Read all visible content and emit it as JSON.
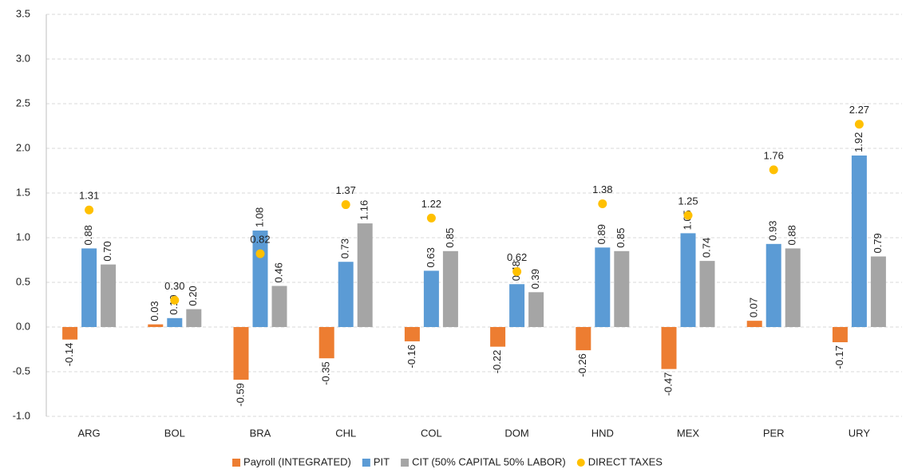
{
  "chart_data": {
    "type": "bar",
    "categories": [
      "ARG",
      "BOL",
      "BRA",
      "CHL",
      "COL",
      "DOM",
      "HND",
      "MEX",
      "PER",
      "URY"
    ],
    "series": [
      {
        "name": "Payroll (INTEGRATED)",
        "color": "#ed7d31",
        "kind": "bar",
        "values": [
          -0.14,
          0.03,
          -0.59,
          -0.35,
          -0.16,
          -0.22,
          -0.26,
          -0.47,
          0.07,
          -0.17
        ],
        "value_labels": [
          "-0.14",
          "0.03",
          "-0.59",
          "-0.35",
          "-0.16",
          "-0.22",
          "-0.26",
          "-0.47",
          "0.07",
          "-0.17"
        ]
      },
      {
        "name": "PIT",
        "color": "#5b9bd5",
        "kind": "bar",
        "values": [
          0.88,
          0.1,
          1.08,
          0.73,
          0.63,
          0.48,
          0.89,
          1.05,
          0.93,
          1.92
        ],
        "value_labels": [
          "0.88",
          "0.10",
          "1.08",
          "0.73",
          "0.63",
          "0.48",
          "0.89",
          "1.05",
          "0.93",
          "1.92"
        ]
      },
      {
        "name": "CIT (50% CAPITAL 50% LABOR)",
        "color": "#a5a5a5",
        "kind": "bar",
        "values": [
          0.7,
          0.2,
          0.46,
          1.16,
          0.85,
          0.39,
          0.85,
          0.74,
          0.88,
          0.79
        ],
        "value_labels": [
          "0.70",
          "0.20",
          "0.46",
          "1.16",
          "0.85",
          "0.39",
          "0.85",
          "0.74",
          "0.88",
          "0.79"
        ]
      },
      {
        "name": "DIRECT TAXES",
        "color": "#ffc000",
        "kind": "dot",
        "values": [
          1.31,
          0.3,
          0.82,
          1.37,
          1.22,
          0.62,
          1.38,
          1.25,
          1.76,
          2.27
        ],
        "value_labels": [
          "1.31",
          "0.30",
          "0.82",
          "1.37",
          "1.22",
          "0.62",
          "1.38",
          "1.25",
          "1.76",
          "2.27"
        ]
      }
    ],
    "ylim": [
      -1.0,
      3.5
    ],
    "yticks": [
      {
        "value": -1.0,
        "label": "-1.0"
      },
      {
        "value": -0.5,
        "label": "-0.5"
      },
      {
        "value": 0,
        "label": "0.0"
      },
      {
        "value": 0.5,
        "label": "0.5"
      },
      {
        "value": 1.0,
        "label": "1.0"
      },
      {
        "value": 1.5,
        "label": "1.5"
      },
      {
        "value": 2.0,
        "label": "2.0"
      },
      {
        "value": 2.5,
        "label": "2.5"
      },
      {
        "value": 3.0,
        "label": "3.0"
      },
      {
        "value": 3.5,
        "label": "3.5"
      }
    ],
    "grid": true,
    "legend": "bottom"
  }
}
